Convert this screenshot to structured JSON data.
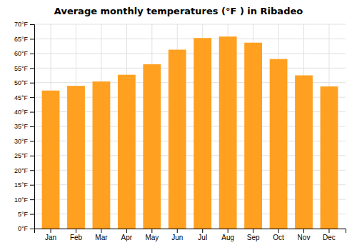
{
  "chart_data": {
    "type": "bar",
    "title": "Average monthly temperatures (°F ) in Ribadeo",
    "categories": [
      "Jan",
      "Feb",
      "Mar",
      "Apr",
      "May",
      "Jun",
      "Jul",
      "Aug",
      "Sep",
      "Oct",
      "Nov",
      "Dec"
    ],
    "values": [
      47.3,
      48.9,
      50.4,
      52.7,
      56.3,
      61.3,
      65.3,
      65.8,
      63.7,
      58.1,
      52.5,
      48.7
    ],
    "color": "#FFA020",
    "ylim": [
      0,
      70
    ],
    "yticks": [
      {
        "value": 0,
        "label": "0°F"
      },
      {
        "value": 5,
        "label": "5°F"
      },
      {
        "value": 10,
        "label": "10°F"
      },
      {
        "value": 15,
        "label": "15°F"
      },
      {
        "value": 20,
        "label": "20°F"
      },
      {
        "value": 25,
        "label": "25°F"
      },
      {
        "value": 30,
        "label": "30°F"
      },
      {
        "value": 35,
        "label": "35°F"
      },
      {
        "value": 40,
        "label": "40°F"
      },
      {
        "value": 45,
        "label": "45°F"
      },
      {
        "value": 50,
        "label": "50°F"
      },
      {
        "value": 55,
        "label": "55°F"
      },
      {
        "value": 60,
        "label": "60°F"
      },
      {
        "value": 65,
        "label": "65°F"
      },
      {
        "value": 70,
        "label": "70°F"
      }
    ],
    "grid": true
  }
}
